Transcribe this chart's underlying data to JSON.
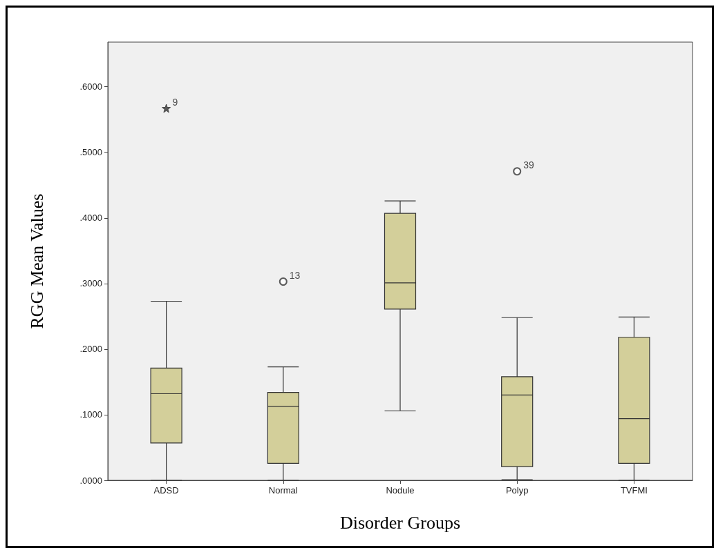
{
  "chart_data": {
    "type": "box",
    "xlabel": "Disorder Groups",
    "ylabel": "RGG Mean Values",
    "categories": [
      "ADSD",
      "Normal",
      "Nodule",
      "Polyp",
      "TVFMI"
    ],
    "color": "#d3cf9a",
    "marker": "circle",
    "grid": false,
    "boxes": [
      {
        "low": 0,
        "q1": 0.057,
        "median": 0.132,
        "q3": 0.171,
        "high": 0.273
      },
      {
        "low": 0,
        "q1": 0.026,
        "median": 0.113,
        "q3": 0.134,
        "high": 0.173,
        "outliers": [
          0.303
        ]
      },
      {
        "low": 0.106,
        "q1": 0.261,
        "median": 0.301,
        "q3": 0.407,
        "high": 0.426
      },
      {
        "low": 0.001,
        "q1": 0.021,
        "median": 0.13,
        "q3": 0.158,
        "high": 0.248,
        "outliers": [
          0.471
        ]
      },
      {
        "low": 0,
        "q1": 0.026,
        "median": 0.094,
        "q3": 0.218,
        "high": 0.249
      }
    ],
    "series": [
      {
        "type": "scatter",
        "marker": "star",
        "color": "#333333",
        "x": [
          "ADSD"
        ],
        "values": [
          0.567
        ]
      }
    ],
    "ylim": [
      0,
      0.668
    ],
    "yticks": [
      {
        "value": 0,
        "label": ".0000"
      },
      {
        "value": 0.1,
        "label": ".1000"
      },
      {
        "value": 0.2,
        "label": ".2000"
      },
      {
        "value": 0.3,
        "label": ".3000"
      },
      {
        "value": 0.4,
        "label": ".4000"
      },
      {
        "value": 0.5,
        "label": ".5000"
      },
      {
        "value": 0.6,
        "label": ".6000"
      }
    ],
    "annotations": [
      "9",
      "13",
      "39"
    ]
  }
}
